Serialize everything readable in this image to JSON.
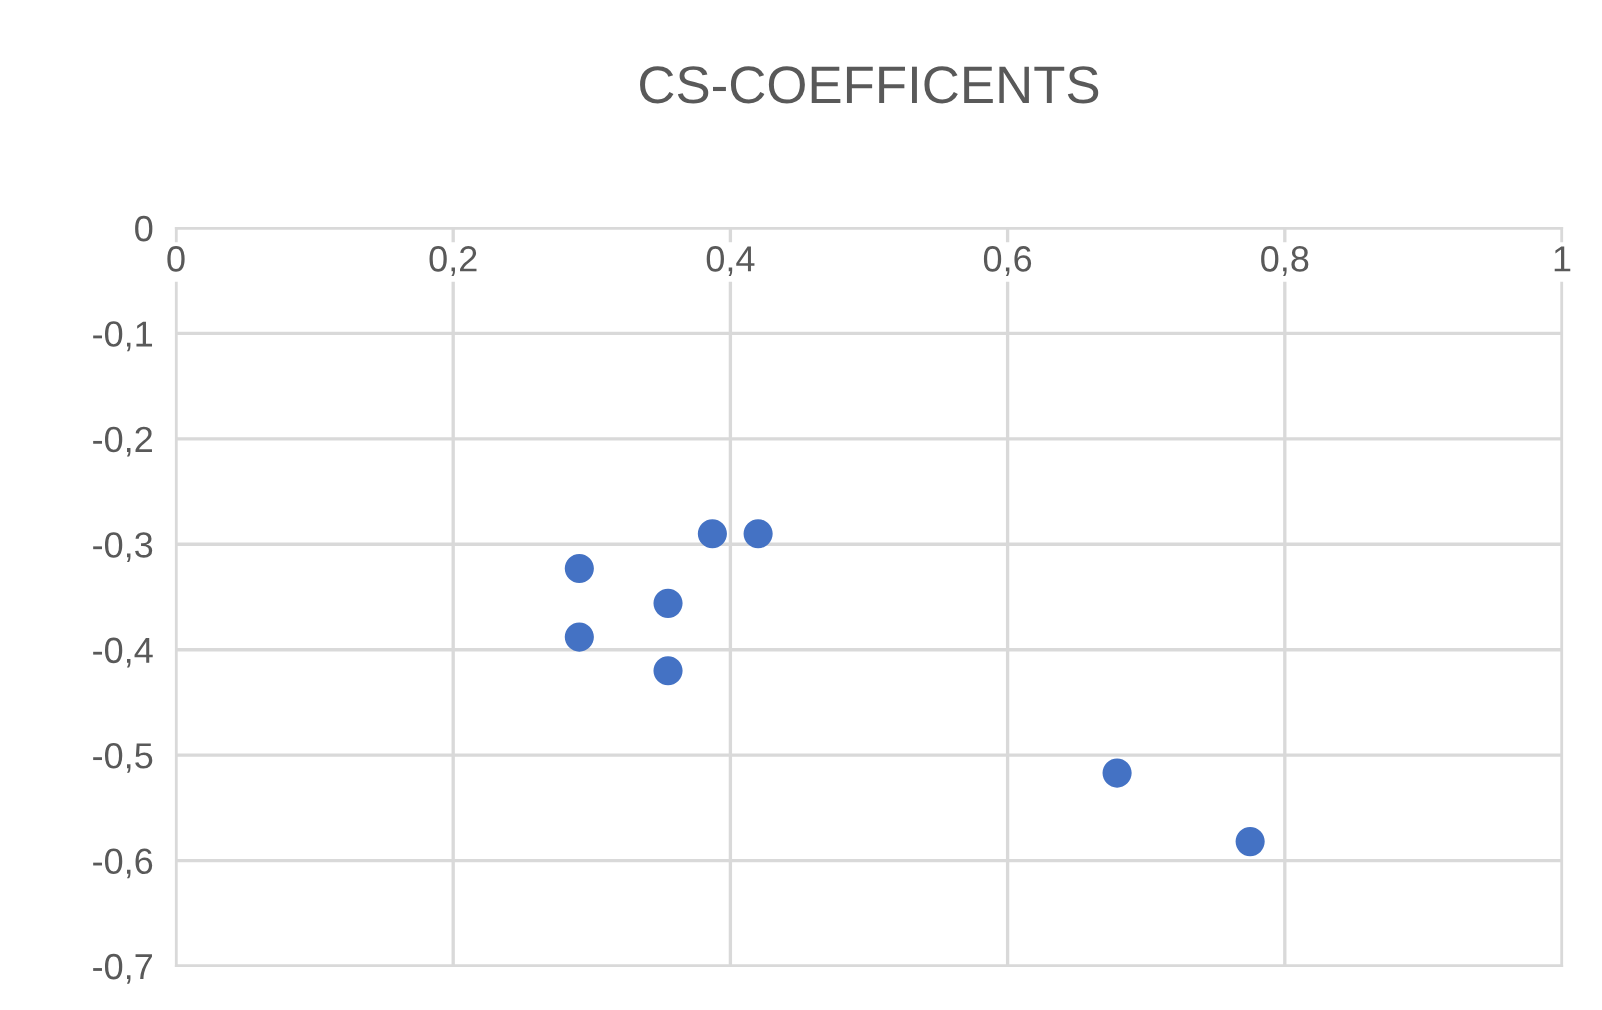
{
  "chart_data": {
    "type": "scatter",
    "title": "CS-COEFFICENTS",
    "x": [
      0.291,
      0.291,
      0.355,
      0.355,
      0.387,
      0.42,
      0.679,
      0.775
    ],
    "series": [
      {
        "color": "#4472c4",
        "values": [
          -0.323,
          -0.388,
          -0.356,
          -0.42,
          -0.29,
          -0.29,
          -0.517,
          -0.582
        ]
      }
    ],
    "xlim": [
      0,
      1
    ],
    "ylim": [
      -0.7,
      0
    ],
    "xticks": [
      {
        "value": 0,
        "label": "0"
      },
      {
        "value": 0.2,
        "label": "0,2"
      },
      {
        "value": 0.4,
        "label": "0,4"
      },
      {
        "value": 0.6,
        "label": "0,6"
      },
      {
        "value": 0.8,
        "label": "0,8"
      },
      {
        "value": 1,
        "label": "1"
      }
    ],
    "yticks": [
      {
        "value": 0,
        "label": "0"
      },
      {
        "value": -0.1,
        "label": "-0,1"
      },
      {
        "value": -0.2,
        "label": "-0,2"
      },
      {
        "value": -0.3,
        "label": "-0,3"
      },
      {
        "value": -0.4,
        "label": "-0,4"
      },
      {
        "value": -0.5,
        "label": "-0,5"
      },
      {
        "value": -0.6,
        "label": "-0,6"
      },
      {
        "value": -0.7,
        "label": "-0,7"
      }
    ],
    "grid": true,
    "marker": "circle"
  }
}
